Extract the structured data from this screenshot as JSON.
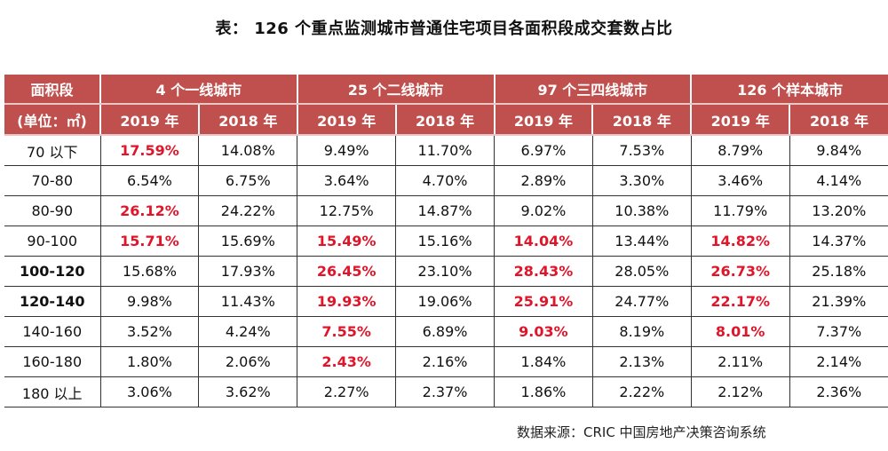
{
  "title": "表： 126 个重点监测城市普通住宅项目各面积段成交套数占比",
  "header": {
    "area_label": "面积段",
    "unit_label": "(单位：㎡)",
    "groups": [
      "4 个一线城市",
      "25 个二线城市",
      "97 个三四线城市",
      "126 个样本城市"
    ],
    "years": [
      "2019 年",
      "2018 年"
    ]
  },
  "highlight_color": "#e0152a",
  "header_color": "#c0504d",
  "rows": [
    {
      "label": "70 以下",
      "bold": false,
      "values": [
        "17.59%",
        "14.08%",
        "9.49%",
        "11.70%",
        "6.97%",
        "7.53%",
        "8.79%",
        "9.84%"
      ],
      "highlight": [
        0
      ]
    },
    {
      "label": "70-80",
      "bold": false,
      "values": [
        "6.54%",
        "6.75%",
        "3.64%",
        "4.70%",
        "2.89%",
        "3.30%",
        "3.46%",
        "4.14%"
      ],
      "highlight": []
    },
    {
      "label": "80-90",
      "bold": false,
      "values": [
        "26.12%",
        "24.22%",
        "12.75%",
        "14.87%",
        "9.02%",
        "10.38%",
        "11.79%",
        "13.20%"
      ],
      "highlight": [
        0
      ]
    },
    {
      "label": "90-100",
      "bold": false,
      "values": [
        "15.71%",
        "15.69%",
        "15.49%",
        "15.16%",
        "14.04%",
        "13.44%",
        "14.82%",
        "14.37%"
      ],
      "highlight": [
        0,
        2,
        4,
        6
      ]
    },
    {
      "label": "100-120",
      "bold": true,
      "values": [
        "15.68%",
        "17.93%",
        "26.45%",
        "23.10%",
        "28.43%",
        "28.05%",
        "26.73%",
        "25.18%"
      ],
      "highlight": [
        2,
        4,
        6
      ]
    },
    {
      "label": "120-140",
      "bold": true,
      "values": [
        "9.98%",
        "11.43%",
        "19.93%",
        "19.06%",
        "25.91%",
        "24.77%",
        "22.17%",
        "21.39%"
      ],
      "highlight": [
        2,
        4,
        6
      ]
    },
    {
      "label": "140-160",
      "bold": false,
      "values": [
        "3.52%",
        "4.24%",
        "7.55%",
        "6.89%",
        "9.03%",
        "8.19%",
        "8.01%",
        "7.37%"
      ],
      "highlight": [
        2,
        4,
        6
      ]
    },
    {
      "label": "160-180",
      "bold": false,
      "values": [
        "1.80%",
        "2.06%",
        "2.43%",
        "2.16%",
        "1.84%",
        "2.13%",
        "2.11%",
        "2.14%"
      ],
      "highlight": [
        2
      ]
    },
    {
      "label": "180 以上",
      "bold": false,
      "values": [
        "3.06%",
        "3.62%",
        "2.27%",
        "2.37%",
        "1.86%",
        "2.22%",
        "2.12%",
        "2.36%"
      ],
      "highlight": []
    }
  ],
  "source": "数据来源：CRIC 中国房地产决策咨询系统"
}
